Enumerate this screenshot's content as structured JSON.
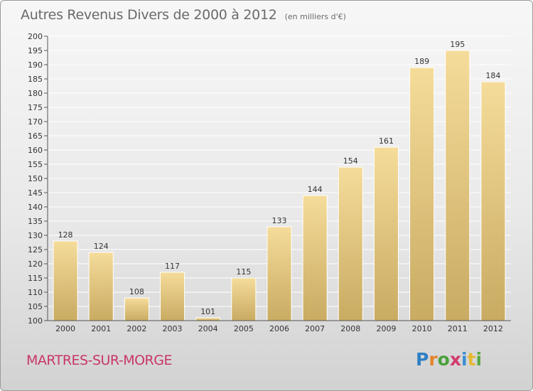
{
  "chart_data": {
    "type": "bar",
    "title": "Autres Revenus Divers de 2000 à 2012",
    "unit_label": "(en milliers d'€)",
    "categories": [
      "2000",
      "2001",
      "2002",
      "2003",
      "2004",
      "2005",
      "2006",
      "2007",
      "2008",
      "2009",
      "2010",
      "2011",
      "2012"
    ],
    "values": [
      128,
      124,
      108,
      117,
      101,
      115,
      133,
      144,
      154,
      161,
      189,
      195,
      184
    ],
    "ylim": [
      100,
      200
    ],
    "yticks": [
      100,
      105,
      110,
      115,
      120,
      125,
      130,
      135,
      140,
      145,
      150,
      155,
      160,
      165,
      170,
      175,
      180,
      185,
      190,
      195,
      200
    ],
    "grid": true,
    "xlabel": "",
    "ylabel": ""
  },
  "place_name": "MARTRES-SUR-MORGE",
  "logo": {
    "text": "Proxiti",
    "colors": [
      "#2f7fc4",
      "#e2832a",
      "#4aa13c",
      "#d23a6c",
      "#3b8ed0",
      "#e6b830",
      "#5aa845"
    ]
  },
  "colors": {
    "bar_light": "#f5dc9a",
    "bar_dark": "#c9ab62",
    "grid": "#ffffff",
    "axis_text": "#333333",
    "title": "#6a6a6a",
    "place": "#c8356a"
  }
}
